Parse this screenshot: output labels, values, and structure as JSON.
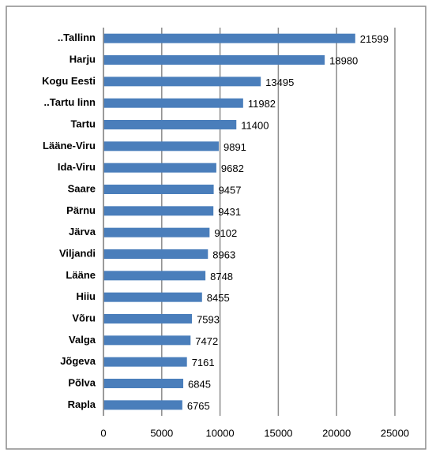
{
  "chart_data": {
    "type": "bar",
    "orientation": "horizontal",
    "categories": [
      "..Tallinn",
      "Harju",
      "Kogu Eesti",
      "..Tartu linn",
      "Tartu",
      "Lääne-Viru",
      "Ida-Viru",
      "Saare",
      "Pärnu",
      "Järva",
      "Viljandi",
      "Lääne",
      "Hiiu",
      "Võru",
      "Valga",
      "Jõgeva",
      "Põlva",
      "Rapla"
    ],
    "values": [
      21599,
      18980,
      13495,
      11982,
      11400,
      9891,
      9682,
      9457,
      9431,
      9102,
      8963,
      8748,
      8455,
      7593,
      7472,
      7161,
      6845,
      6765
    ],
    "color": "#4a7ebb",
    "xlim": [
      0,
      25000
    ],
    "xticks": [
      0,
      5000,
      10000,
      15000,
      20000,
      25000
    ],
    "grid": true
  }
}
